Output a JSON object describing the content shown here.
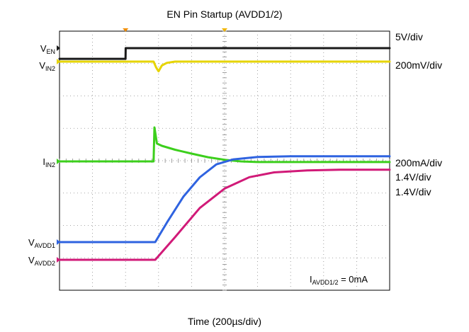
{
  "chart_data": {
    "type": "line",
    "title": "EN Pin Startup (AVDD1/2)",
    "xlabel": "Time (200µs/div)",
    "x_units": "µs",
    "x_range": [
      0,
      2000
    ],
    "grid": true,
    "grid_divisions": {
      "x": 10,
      "y": 8
    },
    "annotation": {
      "main": "I",
      "sub": "AVDD1/2",
      "rest": " = 0mA"
    },
    "channels": [
      {
        "name_main": "V",
        "name_sub": "EN",
        "scale": "5V/div",
        "color": "#1a1a1a",
        "x": [
          0,
          400,
          401,
          2000
        ],
        "y_div": [
          -0.33,
          -0.33,
          0.0,
          0.0
        ]
      },
      {
        "name_main": "V",
        "name_sub": "IN2",
        "scale": "200mV/div",
        "color": "#e6d400",
        "x": [
          0,
          570,
          585,
          600,
          620,
          650,
          700,
          2000
        ],
        "y_div": [
          0.0,
          0.0,
          -0.18,
          -0.3,
          -0.12,
          -0.04,
          0.0,
          0.0
        ]
      },
      {
        "name_main": "I",
        "name_sub": "IN2",
        "scale": "200mA/div",
        "color": "#3ccf1c",
        "x": [
          0,
          570,
          575,
          590,
          620,
          700,
          800,
          900,
          1000,
          1100,
          1200,
          1500,
          2000
        ],
        "y_div": [
          0.0,
          0.0,
          1.05,
          0.55,
          0.48,
          0.36,
          0.24,
          0.13,
          0.05,
          0.0,
          -0.02,
          -0.02,
          -0.02
        ]
      },
      {
        "name_main": "V",
        "name_sub": "AVDD1",
        "scale": "1.4V/div",
        "color": "#2f63e0",
        "x": [
          0,
          580,
          650,
          750,
          850,
          950,
          1050,
          1200,
          1400,
          2000
        ],
        "y_div": [
          0.0,
          0.0,
          0.6,
          1.4,
          2.0,
          2.4,
          2.55,
          2.63,
          2.65,
          2.65
        ]
      },
      {
        "name_main": "V",
        "name_sub": "AVDD2",
        "scale": "1.4V/div",
        "color": "#d11a78",
        "x": [
          0,
          580,
          700,
          850,
          1000,
          1150,
          1300,
          1500,
          1700,
          2000
        ],
        "y_div": [
          0.0,
          0.0,
          0.7,
          1.6,
          2.2,
          2.55,
          2.7,
          2.76,
          2.78,
          2.78
        ]
      }
    ]
  }
}
